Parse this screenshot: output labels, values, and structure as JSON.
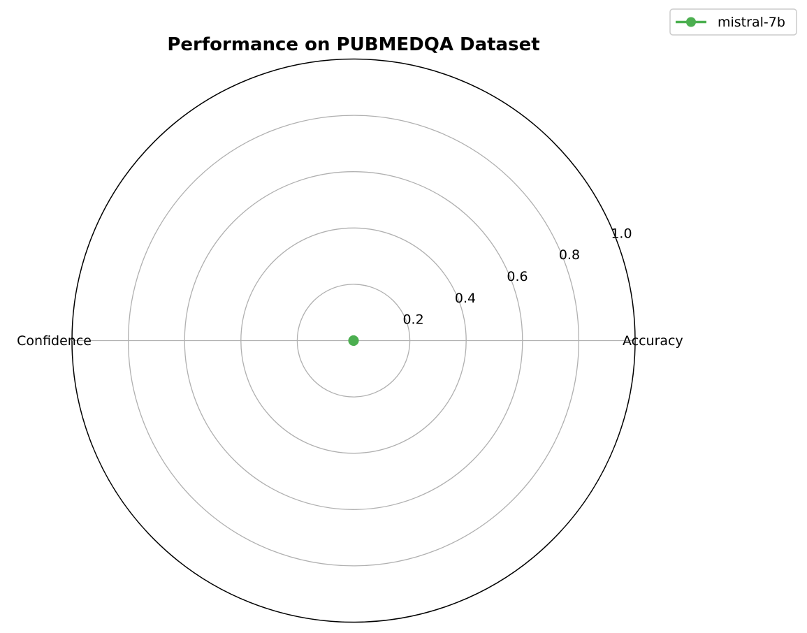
{
  "chart_data": {
    "type": "radar",
    "title": "Performance on PUBMEDQA Dataset",
    "axes": [
      "Accuracy",
      "Confidence"
    ],
    "rlim": [
      0,
      1.0
    ],
    "r_ticks": [
      "0.2",
      "0.4",
      "0.6",
      "0.8",
      "1.0"
    ],
    "grid": true,
    "legend_position": "top-right",
    "series": [
      {
        "name": "mistral-7b",
        "color": "#4caf50",
        "values": [
          0.0,
          0.0
        ]
      }
    ]
  }
}
